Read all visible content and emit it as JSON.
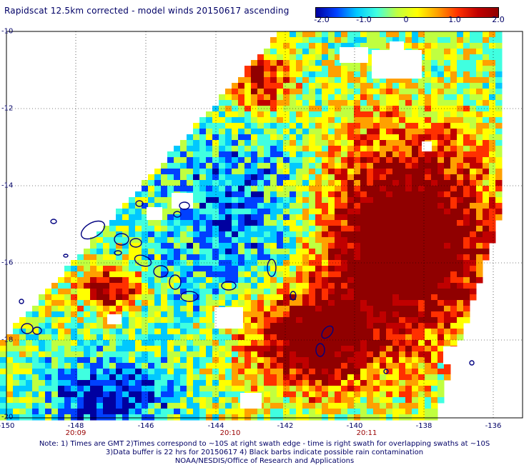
{
  "title": "Rapidscat 12.5km corrected - model winds 20150617 ascending",
  "colorbar": {
    "ticks": [
      "-2.0",
      "-1.0",
      "0",
      "1.0",
      "2.0"
    ],
    "stops": [
      "#0000a0",
      "#0040ff",
      "#00c8ff",
      "#40ffe0",
      "#c0ff40",
      "#ffff00",
      "#ffa000",
      "#ff3000",
      "#c00000",
      "#900000"
    ]
  },
  "map": {
    "lat_labels": [
      "-10",
      "-12",
      "-14",
      "-16",
      "-18",
      "-20"
    ],
    "lon_labels": [
      "-150",
      "-148",
      "-146",
      "-144",
      "-142",
      "-140",
      "-138",
      "-136"
    ],
    "time_labels": [
      "20:09",
      "20:10",
      "20:11"
    ],
    "lat_range": [
      -20,
      -10
    ],
    "lon_range": [
      -150,
      -135.2
    ],
    "grid": "dotted",
    "coast_color": "#000080"
  },
  "notes": {
    "line1": "Note: 1) Times are GMT 2)Times correspond to ~10S at right swath edge - time is right swath for overlapping swaths at ~10S",
    "line2": "3)Data buffer is 22 hrs for 20150617 4) Black barbs indicate possible rain contamination",
    "line3": "NOAA/NESDIS/Office of Research and Applications"
  }
}
